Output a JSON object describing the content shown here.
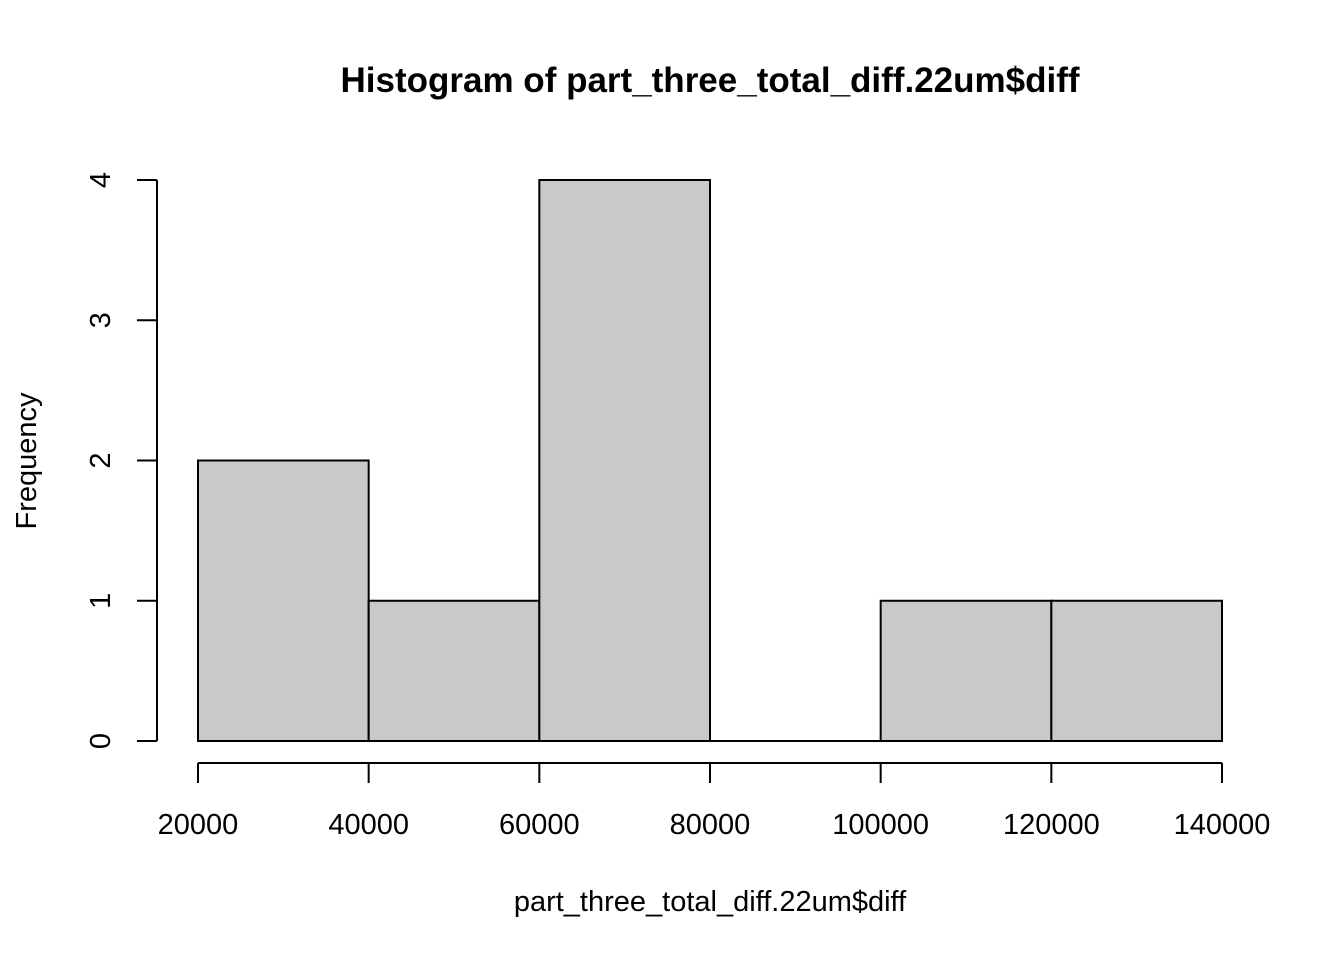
{
  "chart_data": {
    "type": "bar",
    "subtype": "histogram",
    "title": "Histogram of part_three_total_diff.22um$diff",
    "xlabel": "part_three_total_diff.22um$diff",
    "ylabel": "Frequency",
    "bins": [
      {
        "start": 20000,
        "end": 40000,
        "count": 2
      },
      {
        "start": 40000,
        "end": 60000,
        "count": 1
      },
      {
        "start": 60000,
        "end": 80000,
        "count": 4
      },
      {
        "start": 80000,
        "end": 100000,
        "count": 0
      },
      {
        "start": 100000,
        "end": 120000,
        "count": 1
      },
      {
        "start": 120000,
        "end": 140000,
        "count": 1
      }
    ],
    "xlim": [
      20000,
      140000
    ],
    "ylim": [
      0,
      4
    ],
    "x_ticks": [
      {
        "value": 20000,
        "label": "20000"
      },
      {
        "value": 40000,
        "label": "40000"
      },
      {
        "value": 60000,
        "label": "60000"
      },
      {
        "value": 80000,
        "label": "80000"
      },
      {
        "value": 100000,
        "label": "100000"
      },
      {
        "value": 120000,
        "label": "120000"
      },
      {
        "value": 140000,
        "label": "140000"
      }
    ],
    "y_ticks": [
      {
        "value": 0,
        "label": "0"
      },
      {
        "value": 1,
        "label": "1"
      },
      {
        "value": 2,
        "label": "2"
      },
      {
        "value": 3,
        "label": "3"
      },
      {
        "value": 4,
        "label": "4"
      }
    ],
    "bar_fill": "#c9c9c9",
    "bar_stroke": "#000000",
    "grid": false,
    "legend": "none"
  }
}
